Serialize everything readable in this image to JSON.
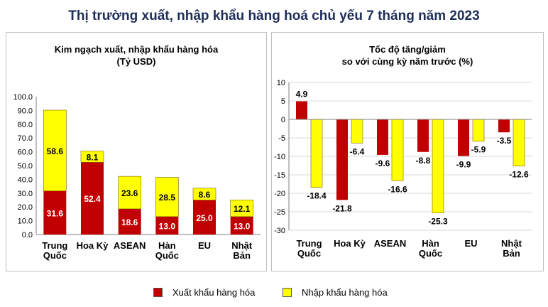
{
  "title": "Thị trường xuất, nhập khẩu hàng hoá chủ yếu 7 tháng năm 2023",
  "colors": {
    "export": "#c00000",
    "import": "#ffff00",
    "bar_border": "#7f6000"
  },
  "legend": {
    "export_label": "Xuất khẩu hàng hóa",
    "import_label": "Nhập khẩu hàng hóa"
  },
  "chart_data": [
    {
      "type": "bar",
      "stacked": true,
      "title": "Kim ngạch xuất, nhập khẩu hàng hóa",
      "subtitle": "(Tỷ USD)",
      "categories": [
        [
          "Trung",
          "Quốc"
        ],
        [
          "Hoa Kỳ"
        ],
        [
          "ASEAN"
        ],
        [
          "Hàn",
          "Quốc"
        ],
        [
          "EU"
        ],
        [
          "Nhật",
          "Bản"
        ]
      ],
      "series": [
        {
          "name": "Xuất khẩu hàng hóa",
          "values": [
            31.6,
            52.4,
            18.6,
            13.0,
            25.0,
            13.0
          ],
          "labels": [
            "31.6",
            "52.4",
            "18.6",
            "13.0",
            "25.0",
            "13.0"
          ]
        },
        {
          "name": "Nhập khẩu hàng hóa",
          "values": [
            58.6,
            8.1,
            23.6,
            28.5,
            8.6,
            12.1
          ],
          "labels": [
            "58.6",
            "8.1",
            "23.6",
            "28.5",
            "8.6",
            "12.1"
          ]
        }
      ],
      "ylim": [
        0,
        100
      ],
      "yticks": [
        "0.0",
        "10.0",
        "20.0",
        "30.0",
        "40.0",
        "50.0",
        "60.0",
        "70.0",
        "80.0",
        "90.0",
        "100.0"
      ],
      "grid": false
    },
    {
      "type": "bar",
      "stacked": false,
      "title": "Tốc độ tăng/giảm",
      "subtitle": "so với cùng kỳ năm trước (%)",
      "categories": [
        [
          "Trung",
          "Quốc"
        ],
        [
          "Hoa Kỳ"
        ],
        [
          "ASEAN"
        ],
        [
          "Hàn",
          "Quốc"
        ],
        [
          "EU"
        ],
        [
          "Nhật",
          "Bản"
        ]
      ],
      "series": [
        {
          "name": "Xuất khẩu hàng hóa",
          "values": [
            4.9,
            -21.8,
            -9.6,
            -8.8,
            -9.9,
            -3.5
          ],
          "labels": [
            "4.9",
            "-21.8",
            "-9.6",
            "-8.8",
            "-9.9",
            "-3.5"
          ]
        },
        {
          "name": "Nhập khẩu hàng hóa",
          "values": [
            -18.4,
            -6.4,
            -16.6,
            -25.3,
            -5.9,
            -12.6
          ],
          "labels": [
            "-18.4",
            "-6.4",
            "-16.6",
            "-25.3",
            "-5.9",
            "-12.6"
          ]
        }
      ],
      "ylim": [
        -30,
        10
      ],
      "yticks": [
        "-30",
        "-25",
        "-20",
        "-15",
        "-10",
        "-5",
        "0",
        "5",
        "10"
      ],
      "grid": true
    }
  ]
}
